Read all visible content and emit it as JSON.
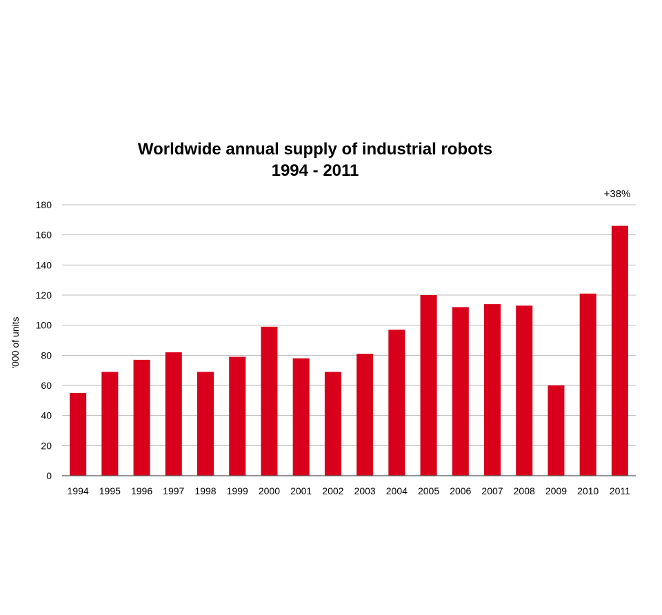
{
  "chart_data": {
    "type": "bar",
    "title": "Worldwide annual supply of industrial robots",
    "subtitle": "1994 - 2011",
    "xlabel": "",
    "ylabel": "'000 of units",
    "ylim": [
      0,
      180
    ],
    "yticks": [
      0,
      20,
      40,
      60,
      80,
      100,
      120,
      140,
      160,
      180
    ],
    "grid": true,
    "categories": [
      "1994",
      "1995",
      "1996",
      "1997",
      "1998",
      "1999",
      "2000",
      "2001",
      "2002",
      "2003",
      "2004",
      "2005",
      "2006",
      "2007",
      "2008",
      "2009",
      "2010",
      "2011"
    ],
    "values": [
      55,
      69,
      77,
      82,
      69,
      79,
      99,
      78,
      69,
      81,
      97,
      120,
      112,
      114,
      113,
      60,
      121,
      166
    ],
    "annotation": "+38%",
    "bar_color": "#d9001b"
  }
}
